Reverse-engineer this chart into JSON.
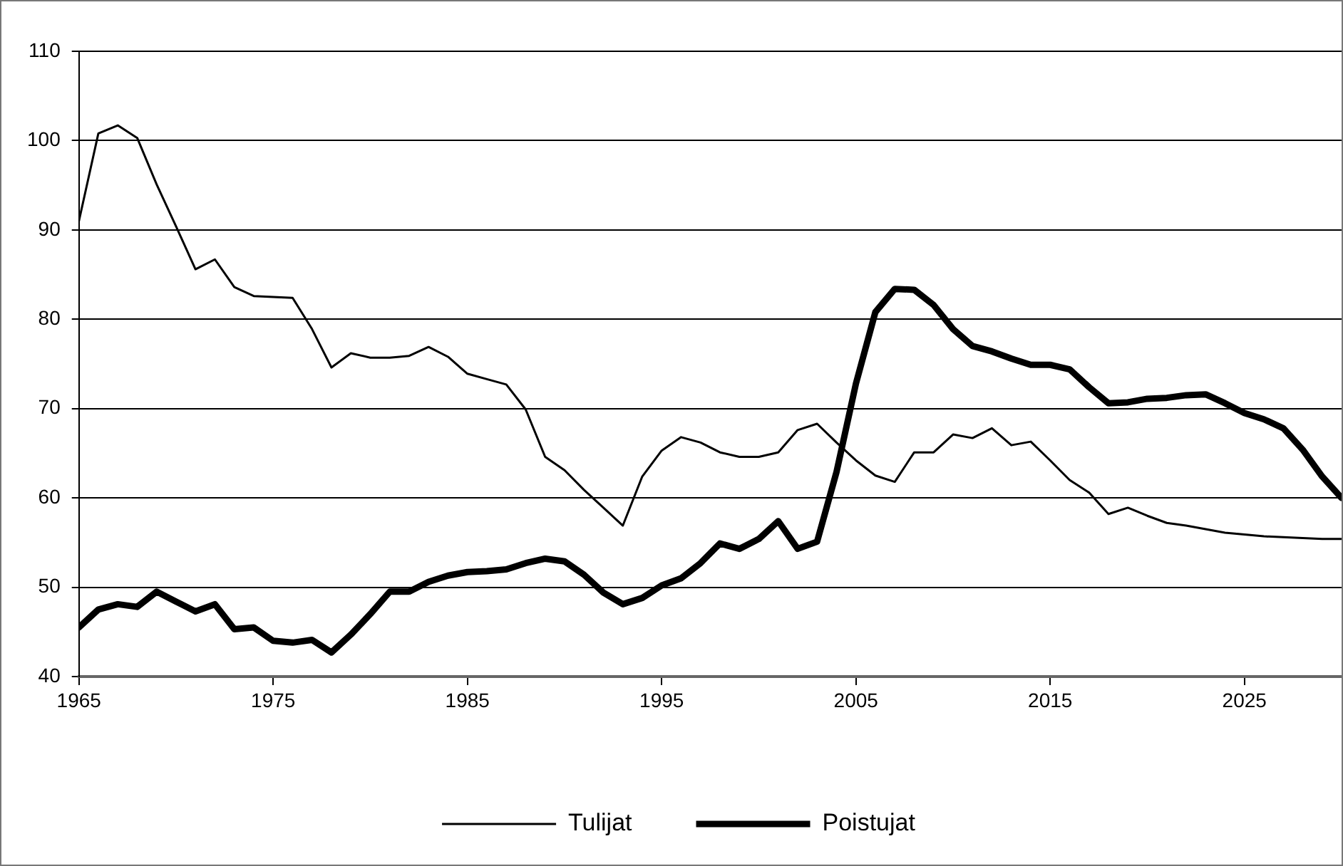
{
  "chart_data": {
    "type": "line",
    "x": [
      1965,
      1966,
      1967,
      1968,
      1969,
      1970,
      1971,
      1972,
      1973,
      1974,
      1975,
      1976,
      1977,
      1978,
      1979,
      1980,
      1981,
      1982,
      1983,
      1984,
      1985,
      1986,
      1987,
      1988,
      1989,
      1990,
      1991,
      1992,
      1993,
      1994,
      1995,
      1996,
      1997,
      1998,
      1999,
      2000,
      2001,
      2002,
      2003,
      2004,
      2005,
      2006,
      2007,
      2008,
      2009,
      2010,
      2011,
      2012,
      2013,
      2014,
      2015,
      2016,
      2017,
      2018,
      2019,
      2020,
      2021,
      2022,
      2023,
      2024,
      2025,
      2026,
      2027,
      2028,
      2029,
      2030
    ],
    "series": [
      {
        "name": "Tulijat",
        "color": "#000000",
        "values": [
          91.0,
          100.8,
          101.7,
          100.3,
          95.1,
          90.4,
          85.6,
          86.7,
          83.6,
          82.6,
          82.5,
          82.4,
          78.9,
          74.6,
          76.2,
          75.7,
          75.7,
          75.9,
          76.9,
          75.8,
          73.9,
          73.3,
          72.7,
          69.9,
          64.6,
          63.1,
          60.9,
          58.9,
          56.9,
          62.4,
          65.3,
          66.8,
          66.2,
          65.1,
          64.6,
          64.6,
          65.1,
          67.6,
          68.3,
          66.2,
          64.2,
          62.5,
          61.8,
          65.1,
          65.1,
          67.1,
          66.7,
          67.8,
          65.9,
          66.3,
          64.2,
          62.0,
          60.6,
          58.2,
          58.9,
          58.0,
          57.2,
          56.9,
          56.5,
          56.1,
          55.9,
          55.7,
          55.6,
          55.5,
          55.4,
          55.4
        ]
      },
      {
        "name": "Poistujat",
        "color": "#000000",
        "values": [
          45.5,
          47.5,
          48.1,
          47.8,
          49.5,
          48.4,
          47.3,
          48.1,
          45.3,
          45.5,
          44.0,
          43.8,
          44.1,
          42.7,
          44.7,
          47.0,
          49.5,
          49.5,
          50.6,
          51.3,
          51.7,
          51.8,
          52.0,
          52.7,
          53.2,
          52.9,
          51.4,
          49.4,
          48.1,
          48.8,
          50.2,
          51.0,
          52.7,
          54.9,
          54.3,
          55.4,
          57.4,
          54.3,
          55.1,
          62.9,
          72.8,
          80.8,
          83.4,
          83.3,
          81.6,
          78.9,
          77.0,
          76.4,
          75.6,
          74.9,
          74.9,
          74.4,
          72.4,
          70.6,
          70.7,
          71.1,
          71.2,
          71.5,
          71.6,
          70.6,
          69.5,
          68.8,
          67.8,
          65.4,
          62.4,
          60.0
        ]
      }
    ],
    "xlim": [
      1965,
      2030
    ],
    "xticks": [
      1965,
      1975,
      1985,
      1995,
      2005,
      2015,
      2025
    ],
    "ylim": [
      40,
      110
    ],
    "yticks": [
      40,
      50,
      60,
      70,
      80,
      90,
      100,
      110
    ],
    "grid": "y",
    "legend": "bottom",
    "marker": "none"
  }
}
